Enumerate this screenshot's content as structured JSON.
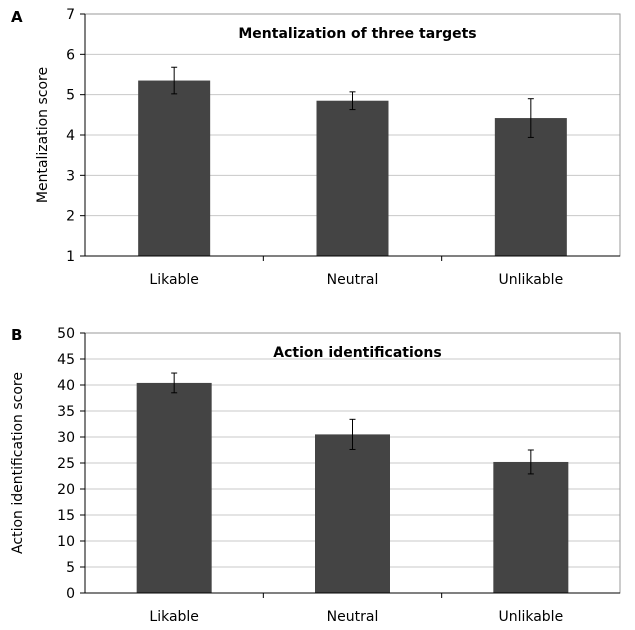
{
  "colors": {
    "bar": "#444444",
    "grid": "#c8c8c8",
    "frame": "#9a9a9a"
  },
  "chart_data": [
    {
      "type": "bar",
      "panel": "A",
      "title": "Mentalization of three targets",
      "xlabel": "",
      "ylabel": "Mentalization score",
      "categories": [
        "Likable",
        "Neutral",
        "Unlikable"
      ],
      "values": [
        5.35,
        4.85,
        4.42
      ],
      "errors": [
        0.33,
        0.22,
        0.48
      ],
      "ylim": [
        1,
        7
      ],
      "yticks": [
        1,
        2,
        3,
        4,
        5,
        6,
        7
      ],
      "grid": true,
      "legend": "none"
    },
    {
      "type": "bar",
      "panel": "B",
      "title": "Action identifications",
      "xlabel": "",
      "ylabel": "Action identification score",
      "categories": [
        "Likable",
        "Neutral",
        "Unlikable"
      ],
      "values": [
        40.4,
        30.5,
        25.2
      ],
      "errors": [
        1.9,
        2.9,
        2.3
      ],
      "ylim": [
        0,
        50
      ],
      "yticks": [
        0,
        5,
        10,
        15,
        20,
        25,
        30,
        35,
        40,
        45,
        50
      ],
      "grid": true,
      "legend": "none"
    }
  ]
}
